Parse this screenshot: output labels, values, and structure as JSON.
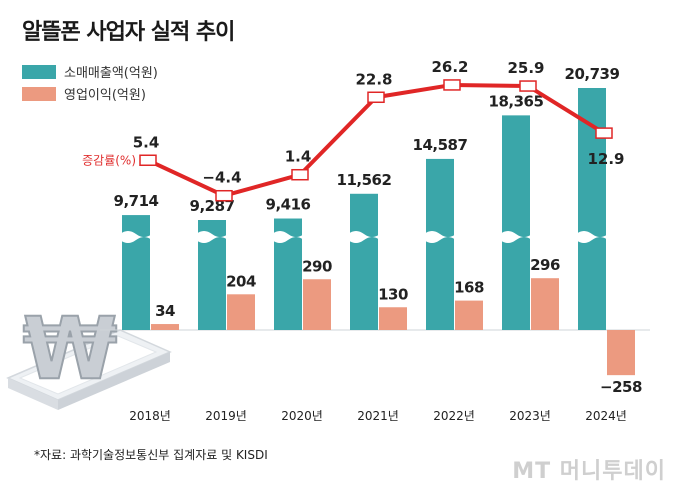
{
  "title": "알뜰폰 사업자 실적 추이",
  "legend": {
    "revenue": "소매매출액(억원)",
    "profit": "영업이익(억원)",
    "growth": "증감률(%)"
  },
  "source": "*자료: 과학기술정보통신부 집계자료 및 KISDI",
  "watermark": "MT 머니투데이",
  "colors": {
    "revenue": "#3aa6a9",
    "profit": "#ec9a80",
    "growth": "#e02626"
  },
  "chart_data": {
    "type": "bar",
    "categories": [
      "2018년",
      "2019년",
      "2020년",
      "2021년",
      "2022년",
      "2023년",
      "2024년"
    ],
    "series": [
      {
        "name": "소매매출액(억원)",
        "values": [
          9714,
          9287,
          9416,
          11562,
          14587,
          18365,
          20739
        ],
        "labels": [
          "9,714",
          "9,287",
          "9,416",
          "11,562",
          "14,587",
          "18,365",
          "20,739"
        ]
      },
      {
        "name": "영업이익(억원)",
        "values": [
          34,
          204,
          290,
          130,
          168,
          296,
          -258
        ],
        "labels": [
          "34",
          "204",
          "290",
          "130",
          "168",
          "296",
          "−258"
        ]
      },
      {
        "name": "증감률(%)",
        "type": "line",
        "values": [
          5.4,
          -4.4,
          1.4,
          22.8,
          26.2,
          25.9,
          12.9
        ],
        "labels": [
          "5.4",
          "−4.4",
          "1.4",
          "22.8",
          "26.2",
          "25.9",
          "12.9"
        ]
      }
    ],
    "axis_break": true,
    "gridlines": false
  }
}
